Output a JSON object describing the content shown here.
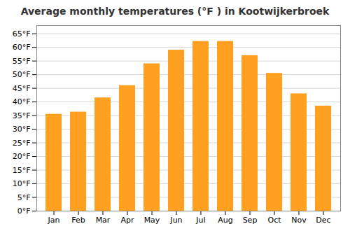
{
  "chart_data": {
    "type": "bar",
    "title": "Average monthly temperatures (°F ) in Kootwijkerbroek",
    "categories": [
      "Jan",
      "Feb",
      "Mar",
      "Apr",
      "May",
      "Jun",
      "Jul",
      "Aug",
      "Sep",
      "Oct",
      "Nov",
      "Dec"
    ],
    "values": [
      35.5,
      36.3,
      41.5,
      46.0,
      54.0,
      59.0,
      62.2,
      62.2,
      57.0,
      50.5,
      43.0,
      38.5
    ],
    "color": "#FFA020",
    "ylim": [
      0,
      68
    ],
    "yticks": [
      {
        "value": 0,
        "label": "0°F"
      },
      {
        "value": 5,
        "label": "5°F"
      },
      {
        "value": 10,
        "label": "10°F"
      },
      {
        "value": 15,
        "label": "15°F"
      },
      {
        "value": 20,
        "label": "20°F"
      },
      {
        "value": 25,
        "label": "25°F"
      },
      {
        "value": 30,
        "label": "30°F"
      },
      {
        "value": 35,
        "label": "35°F"
      },
      {
        "value": 40,
        "label": "40°F"
      },
      {
        "value": 45,
        "label": "45°F"
      },
      {
        "value": 50,
        "label": "50°F"
      },
      {
        "value": 55,
        "label": "55°F"
      },
      {
        "value": 60,
        "label": "60°F"
      },
      {
        "value": 65,
        "label": "65°F"
      }
    ],
    "grid": true
  }
}
